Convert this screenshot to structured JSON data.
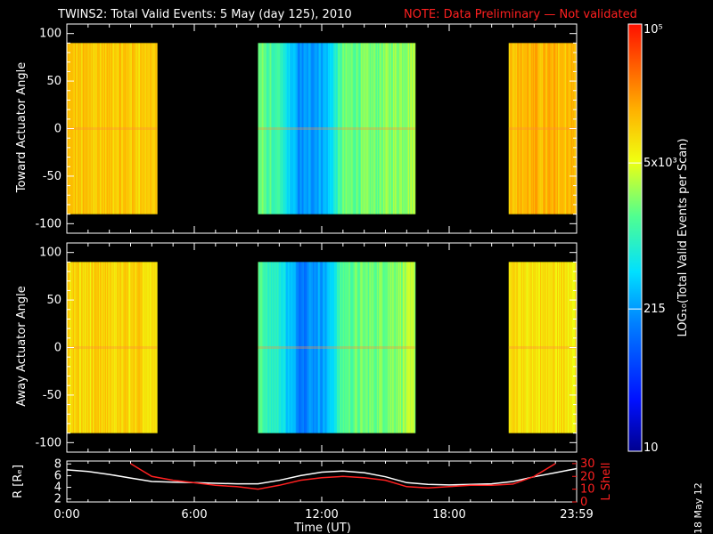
{
  "title": {
    "main": "TWINS2: Total Valid Events:  5 May (day 125), 2010",
    "note": "NOTE: Data Preliminary — Not validated"
  },
  "stamp": "18 May 12",
  "colors": {
    "background": "#000000",
    "axes": "#ffffff",
    "note": "#ff2020",
    "r_line": "#ffffff",
    "lshell_line": "#ff2020"
  },
  "chart_data": [
    {
      "type": "heatmap",
      "name": "toward",
      "ylabel": "Toward Actuator Angle",
      "ylim": [
        -110,
        110
      ],
      "yticks": [
        100,
        50,
        0,
        -50,
        -100
      ],
      "data_ylim": [
        -90,
        90
      ],
      "xlim": [
        0,
        24
      ],
      "segments": [
        {
          "x": [
            0,
            4.25
          ],
          "mean_log": 4.05
        },
        {
          "x": [
            9,
            16.4
          ],
          "mean_log": 3.1,
          "profile": [
            [
              9,
              3.3
            ],
            [
              10,
              3.0
            ],
            [
              11,
              2.25
            ],
            [
              12.25,
              2.5
            ],
            [
              13,
              3.25
            ],
            [
              14.5,
              3.3
            ],
            [
              16.4,
              3.5
            ]
          ]
        },
        {
          "x": [
            20.8,
            24
          ],
          "mean_log": 4.15
        }
      ]
    },
    {
      "type": "heatmap",
      "name": "away",
      "ylabel": "Away Actuator Angle",
      "ylim": [
        -110,
        110
      ],
      "yticks": [
        100,
        50,
        0,
        -50,
        -100
      ],
      "data_ylim": [
        -90,
        90
      ],
      "xlim": [
        0,
        24
      ],
      "segments": [
        {
          "x": [
            0,
            4.25
          ],
          "mean_log": 3.95
        },
        {
          "x": [
            9,
            16.4
          ],
          "mean_log": 3.05,
          "profile": [
            [
              9,
              3.2
            ],
            [
              10,
              2.9
            ],
            [
              11,
              2.2
            ],
            [
              12.25,
              2.45
            ],
            [
              13,
              3.2
            ],
            [
              14.5,
              3.3
            ],
            [
              16.4,
              3.5
            ]
          ]
        },
        {
          "x": [
            20.8,
            24
          ],
          "mean_log": 3.9
        }
      ]
    },
    {
      "type": "line",
      "name": "orbit",
      "xlabel": "Time (UT)",
      "xticks": [
        "0:00",
        "6:00",
        "12:00",
        "18:00",
        "23:59"
      ],
      "xtick_values": [
        0,
        6,
        12,
        18,
        24
      ],
      "xlim": [
        0,
        24
      ],
      "ylabel_left": "R [Rₑ]",
      "yticks_left": [
        8,
        6,
        4,
        2
      ],
      "ylim_left": [
        1.5,
        8.5
      ],
      "ylabel_right": "L Shell",
      "yticks_right": [
        30,
        20,
        10,
        0
      ],
      "ylim_right": [
        0,
        32
      ],
      "series": [
        {
          "name": "R",
          "axis": "left",
          "x": [
            0,
            1,
            2,
            3,
            4,
            5,
            6,
            7,
            8,
            9,
            10,
            11,
            12,
            13,
            14,
            15,
            16,
            17,
            18,
            19,
            20,
            21,
            22,
            23,
            24
          ],
          "y": [
            7.0,
            6.7,
            6.2,
            5.6,
            5.0,
            4.9,
            4.8,
            4.7,
            4.6,
            4.6,
            5.2,
            6.0,
            6.6,
            6.8,
            6.5,
            5.8,
            4.8,
            4.5,
            4.4,
            4.5,
            4.6,
            5.0,
            5.8,
            6.5,
            7.2
          ]
        },
        {
          "name": "L Shell",
          "axis": "right",
          "x": [
            3,
            3.5,
            4,
            5,
            6,
            7,
            8,
            9,
            10,
            11,
            12,
            13,
            14,
            15,
            16,
            17,
            18,
            19,
            20,
            21,
            22,
            23
          ],
          "y": [
            30,
            25,
            20,
            17,
            15,
            13,
            12,
            10,
            13,
            17,
            19,
            20,
            19,
            17,
            12,
            11,
            12,
            13,
            13,
            14,
            20,
            30
          ]
        }
      ]
    },
    {
      "type": "colorbar",
      "label": "LOG₁₀(Total Valid Events per Scan)",
      "tick_labels": [
        "10⁵",
        "5x10³",
        "215",
        "10"
      ],
      "tick_values_log": [
        5,
        3.699,
        2.332,
        1
      ],
      "range_log": [
        1,
        5
      ]
    }
  ]
}
